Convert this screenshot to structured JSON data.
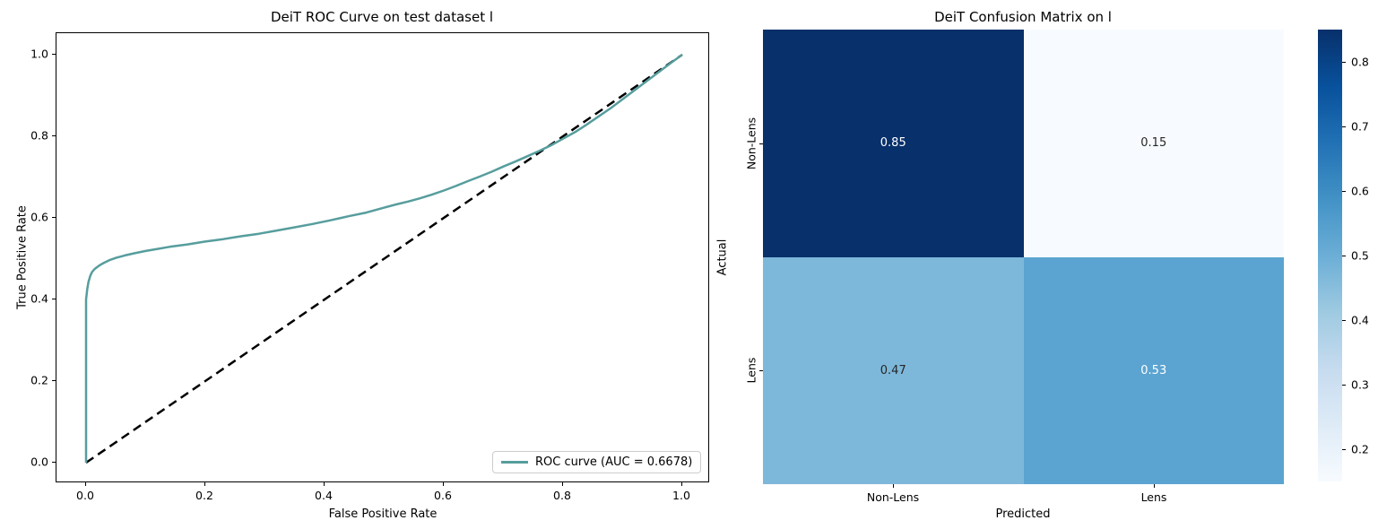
{
  "chart_data": [
    {
      "type": "line",
      "title": "DeiT ROC Curve on test dataset l",
      "xlabel": "False Positive Rate",
      "ylabel": "True Positive Rate",
      "xlim": [
        -0.05,
        1.05
      ],
      "ylim": [
        -0.05,
        1.05
      ],
      "grid": false,
      "legend_position": "lower right",
      "x_ticks": [
        {
          "v": 0.0,
          "label": "0.0"
        },
        {
          "v": 0.2,
          "label": "0.2"
        },
        {
          "v": 0.4,
          "label": "0.4"
        },
        {
          "v": 0.6,
          "label": "0.6"
        },
        {
          "v": 0.8,
          "label": "0.8"
        },
        {
          "v": 1.0,
          "label": "1.0"
        }
      ],
      "y_ticks": [
        {
          "v": 0.0,
          "label": "0.0"
        },
        {
          "v": 0.2,
          "label": "0.2"
        },
        {
          "v": 0.4,
          "label": "0.4"
        },
        {
          "v": 0.6,
          "label": "0.6"
        },
        {
          "v": 0.8,
          "label": "0.8"
        },
        {
          "v": 1.0,
          "label": "1.0"
        }
      ],
      "series": [
        {
          "name": "ROC curve (AUC = 0.6678)",
          "auc": 0.6678,
          "color": "#579d9d",
          "style": "solid",
          "width": 2.5,
          "points": [
            [
              0.0,
              0.0
            ],
            [
              0.0,
              0.4
            ],
            [
              0.002,
              0.425
            ],
            [
              0.004,
              0.443
            ],
            [
              0.007,
              0.458
            ],
            [
              0.01,
              0.467
            ],
            [
              0.014,
              0.474
            ],
            [
              0.018,
              0.479
            ],
            [
              0.024,
              0.485
            ],
            [
              0.03,
              0.49
            ],
            [
              0.04,
              0.497
            ],
            [
              0.05,
              0.502
            ],
            [
              0.065,
              0.508
            ],
            [
              0.08,
              0.513
            ],
            [
              0.1,
              0.519
            ],
            [
              0.12,
              0.524
            ],
            [
              0.14,
              0.529
            ],
            [
              0.17,
              0.535
            ],
            [
              0.2,
              0.542
            ],
            [
              0.23,
              0.548
            ],
            [
              0.26,
              0.555
            ],
            [
              0.29,
              0.561
            ],
            [
              0.32,
              0.569
            ],
            [
              0.35,
              0.577
            ],
            [
              0.38,
              0.585
            ],
            [
              0.41,
              0.594
            ],
            [
              0.44,
              0.604
            ],
            [
              0.47,
              0.613
            ],
            [
              0.5,
              0.625
            ],
            [
              0.52,
              0.633
            ],
            [
              0.54,
              0.64
            ],
            [
              0.56,
              0.648
            ],
            [
              0.58,
              0.657
            ],
            [
              0.6,
              0.667
            ],
            [
              0.62,
              0.678
            ],
            [
              0.64,
              0.69
            ],
            [
              0.66,
              0.701
            ],
            [
              0.68,
              0.713
            ],
            [
              0.7,
              0.726
            ],
            [
              0.72,
              0.738
            ],
            [
              0.74,
              0.751
            ],
            [
              0.76,
              0.764
            ],
            [
              0.78,
              0.778
            ],
            [
              0.8,
              0.794
            ],
            [
              0.82,
              0.81
            ],
            [
              0.84,
              0.829
            ],
            [
              0.86,
              0.849
            ],
            [
              0.88,
              0.869
            ],
            [
              0.9,
              0.891
            ],
            [
              0.92,
              0.913
            ],
            [
              0.94,
              0.935
            ],
            [
              0.96,
              0.957
            ],
            [
              0.98,
              0.979
            ],
            [
              1.0,
              1.0
            ]
          ]
        },
        {
          "name": "chance-diagonal",
          "color": "#000000",
          "style": "dashed",
          "width": 2.5,
          "points": [
            [
              0.0,
              0.0
            ],
            [
              1.0,
              1.0
            ]
          ]
        }
      ]
    },
    {
      "type": "heatmap",
      "title": "DeiT Confusion Matrix on l",
      "xlabel": "Predicted",
      "ylabel": "Actual",
      "x_categories": [
        "Non-Lens",
        "Lens"
      ],
      "y_categories": [
        "Non-Lens",
        "Lens"
      ],
      "values": [
        [
          0.85,
          0.15
        ],
        [
          0.47,
          0.53
        ]
      ],
      "cell_labels": [
        [
          "0.85",
          "0.15"
        ],
        [
          "0.47",
          "0.53"
        ]
      ],
      "cell_colors": [
        [
          "#08306b",
          "#f7fbff"
        ],
        [
          "#7db8da",
          "#5ba4d1"
        ]
      ],
      "cell_text_colors": [
        [
          "#ffffff",
          "#262626"
        ],
        [
          "#262626",
          "#ffffff"
        ]
      ],
      "colorbar": {
        "vmin": 0.15,
        "vmax": 0.85,
        "ticks": [
          {
            "v": 0.2,
            "label": "0.2"
          },
          {
            "v": 0.3,
            "label": "0.3"
          },
          {
            "v": 0.4,
            "label": "0.4"
          },
          {
            "v": 0.5,
            "label": "0.5"
          },
          {
            "v": 0.6,
            "label": "0.6"
          },
          {
            "v": 0.7,
            "label": "0.7"
          },
          {
            "v": 0.8,
            "label": "0.8"
          }
        ],
        "colormap": "Blues",
        "gradient_stops": [
          {
            "t": 1.0,
            "c": "#08306b"
          },
          {
            "t": 0.875,
            "c": "#08519c"
          },
          {
            "t": 0.75,
            "c": "#2171b5"
          },
          {
            "t": 0.625,
            "c": "#4292c6"
          },
          {
            "t": 0.5,
            "c": "#6baed6"
          },
          {
            "t": 0.375,
            "c": "#9ecae1"
          },
          {
            "t": 0.25,
            "c": "#c6dbef"
          },
          {
            "t": 0.125,
            "c": "#deebf7"
          },
          {
            "t": 0.0,
            "c": "#f7fbff"
          }
        ]
      }
    }
  ]
}
